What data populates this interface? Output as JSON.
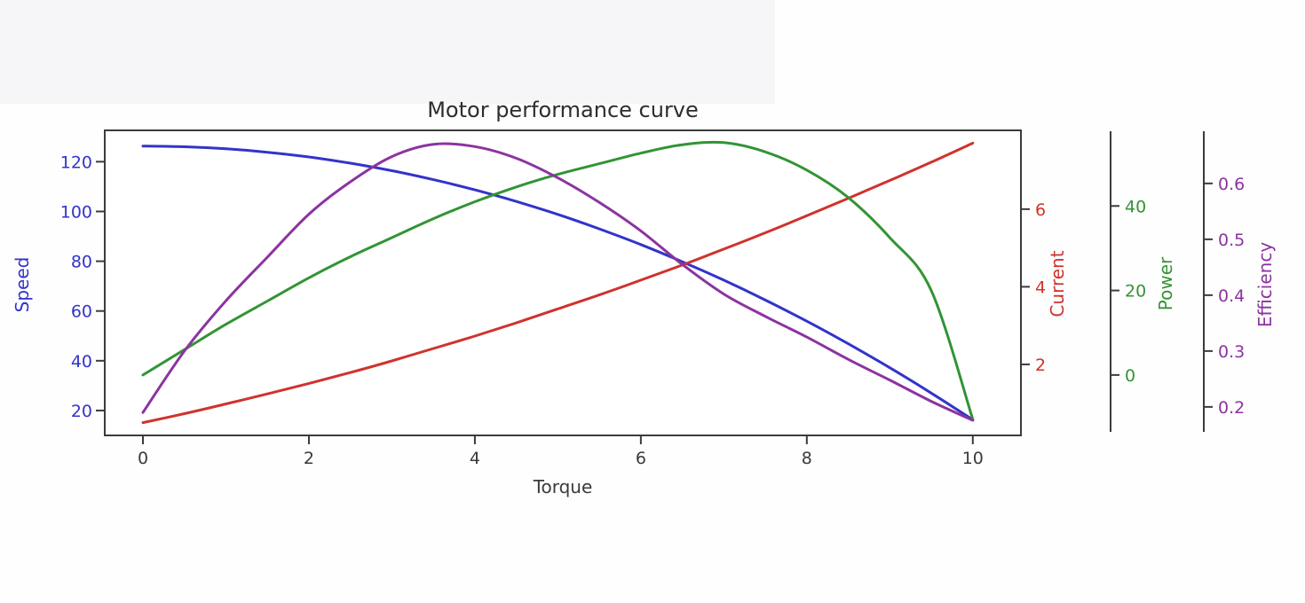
{
  "chart_data": {
    "type": "line",
    "title": "Motor performance curve",
    "xlabel": "Torque",
    "grid": false,
    "legend": null,
    "axis_color": "#3b3b3b",
    "tick_label_color": "#3a3a3a",
    "x_ticks": [
      0,
      2,
      4,
      6,
      8,
      10
    ],
    "xlim": [
      -0.46,
      10.58
    ],
    "x": [
      0,
      0.5,
      1,
      1.5,
      2,
      2.5,
      3,
      3.5,
      4,
      4.5,
      5,
      5.5,
      6,
      6.5,
      7,
      7.5,
      8,
      8.5,
      9,
      9.5,
      10
    ],
    "series": [
      {
        "name": "Speed",
        "color": "#3333cc",
        "axis_side": "left",
        "ticks": [
          20,
          40,
          60,
          80,
          100,
          120
        ],
        "ylim": [
          10,
          132.6
        ],
        "values": [
          126.3,
          126.0,
          125.2,
          123.8,
          121.9,
          119.4,
          116.4,
          112.8,
          108.7,
          104.0,
          98.8,
          93.0,
          86.7,
          79.8,
          72.4,
          64.4,
          55.9,
          46.8,
          37.2,
          27.0,
          16.3
        ]
      },
      {
        "name": "Current",
        "color": "#d0322d",
        "axis_side": "right-attached",
        "ticks": [
          2,
          4,
          6
        ],
        "ylim": [
          0.17,
          8.03
        ],
        "values": [
          0.5,
          0.73,
          0.98,
          1.24,
          1.51,
          1.79,
          2.09,
          2.41,
          2.73,
          3.07,
          3.43,
          3.79,
          4.17,
          4.56,
          4.97,
          5.39,
          5.83,
          6.28,
          6.74,
          7.21,
          7.7
        ]
      },
      {
        "name": "Power",
        "color": "#329435",
        "axis_side": "right-detached-1",
        "ticks": [
          0,
          20,
          40
        ],
        "ylim": [
          -14.3,
          57.9
        ],
        "values": [
          0,
          6,
          12,
          17.5,
          23,
          28,
          32.5,
          37,
          41,
          44.5,
          47.5,
          50,
          52.5,
          54.5,
          55,
          52.8,
          48.5,
          42,
          32.5,
          20,
          -10.5
        ]
      },
      {
        "name": "Efficiency",
        "color": "#8c33a0",
        "axis_side": "right-detached-2",
        "ticks": [
          0.2,
          0.3,
          0.4,
          0.5,
          0.6
        ],
        "ylim": [
          0.149,
          0.695
        ],
        "values": [
          0.19,
          0.3,
          0.39,
          0.468,
          0.545,
          0.603,
          0.648,
          0.67,
          0.666,
          0.645,
          0.61,
          0.566,
          0.515,
          0.455,
          0.402,
          0.362,
          0.325,
          0.285,
          0.248,
          0.21,
          0.176
        ]
      }
    ]
  }
}
